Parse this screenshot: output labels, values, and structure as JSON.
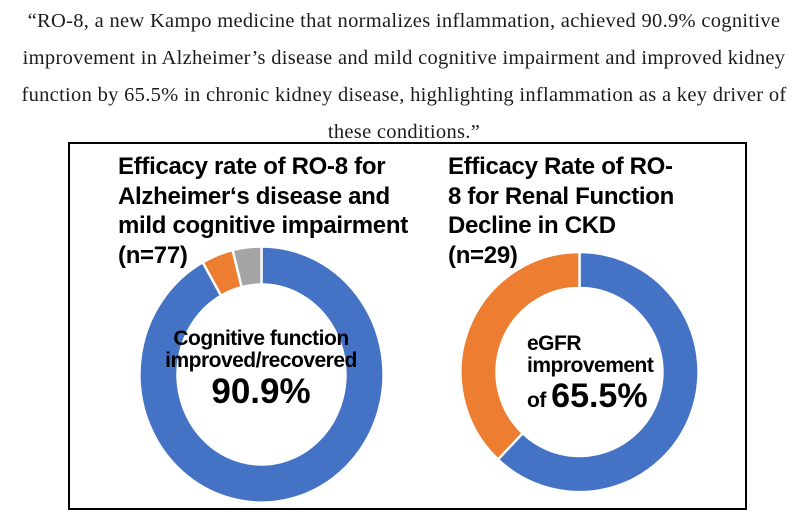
{
  "quote": {
    "text": "“RO-8, a new Kampo medicine that normalizes inflammation, achieved 90.9% cognitive\nimprovement in Alzheimer’s disease and mild cognitive impairment and improved kidney\nfunction by 65.5% in chronic kidney disease, highlighting inflammation as a key driver of\nthese conditions.”"
  },
  "figure": {
    "charts": [
      {
        "title_block": "Efficacy rate of RO-8 for\nAlzheimer‘s disease and\nmild cognitive impairment\n(n=77)",
        "center_lines": "Cognitive function\nimproved/recovered",
        "center_prefix": "",
        "center_value": "90.9%"
      },
      {
        "title_block": "Efficacy Rate of RO-\n8 for Renal Function\nDecline in CKD\n(n=29)",
        "center_lines": "eGFR\nimprovement",
        "center_prefix": "of ",
        "center_value": "65.5%"
      }
    ]
  },
  "chart_data": [
    {
      "type": "pie",
      "subtype": "donut",
      "title": "Efficacy rate of RO-8 for Alzheimer‘s disease and mild cognitive impairment (n=77)",
      "n": 77,
      "start_angle_deg": 0,
      "direction": "clockwise",
      "center_text": "Cognitive function improved/recovered 90.9%",
      "labeled_value_pct": 90.9,
      "segments": [
        {
          "label": "Cognitive function improved/recovered",
          "value": 90.9,
          "color": "#4472C4",
          "sweep_pct": 92.0
        },
        {
          "label": "",
          "value": 4.5,
          "color": "#ED7D31",
          "sweep_pct": 4.2
        },
        {
          "label": "",
          "value": 4.6,
          "color": "#A5A5A5",
          "sweep_pct": 3.8
        }
      ]
    },
    {
      "type": "pie",
      "subtype": "donut",
      "title": "Efficacy Rate of RO-8 for Renal Function Decline in CKD (n=29)",
      "n": 29,
      "start_angle_deg": 0,
      "direction": "clockwise",
      "center_text": "eGFR improvement of 65.5%",
      "labeled_value_pct": 65.5,
      "segments": [
        {
          "label": "eGFR improvement",
          "value": 65.5,
          "color": "#4472C4",
          "sweep_pct": 62.0
        },
        {
          "label": "",
          "value": 34.5,
          "color": "#ED7D31",
          "sweep_pct": 38.0
        }
      ]
    }
  ],
  "colors": {
    "blue": "#4472C4",
    "orange": "#ED7D31",
    "gray": "#A5A5A5",
    "panel_border": "#000000",
    "segment_separator": "#FFFFFF"
  }
}
